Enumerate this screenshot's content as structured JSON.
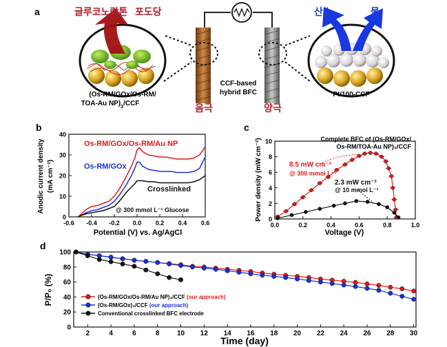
{
  "panel_a": {
    "letter": "a",
    "anode_products": [
      "글루코노락톤",
      "포도당"
    ],
    "cathode_products": [
      "산소",
      "물"
    ],
    "anode_caption_line1": "(Os-RM/GOx/Os-RM/",
    "anode_caption_line2": "TOA-Au NP)",
    "anode_caption_sub": "3",
    "anode_caption_tail": "/CCF",
    "center_label_line1": "CCF-based",
    "center_label_line2": "hybrid BFC",
    "cathode_caption": "Pt/100-CCF",
    "anode_label": "음극",
    "cathode_label": "양극",
    "colors": {
      "anode_text": "#b0202a",
      "cathode_text": "#1a3fd0",
      "anode_arrow": "#a01010",
      "cathode_arrow": "#1838e0"
    }
  },
  "panel_b": {
    "letter": "b",
    "ylabel_line1": "Anodic current density",
    "ylabel_line2": "(mA cm⁻²)",
    "xlabel": "Potential (V) vs. Ag/AgCl",
    "legend": [
      "Os-RM/GOx/Os-RM/Au NP",
      "Os-RM/GOx",
      "Crosslinked"
    ],
    "annotation": "@ 300 mmol L⁻¹ Glucose"
  },
  "panel_c": {
    "letter": "c",
    "ylabel": "Power density (mW cm⁻²)",
    "xlabel": "Voltage (V)",
    "title_line1": "Complete BFC of (Os-RM/GOx/",
    "title_line2": "Os-RM/TOA-Au NP)₃/CCF",
    "peak1_line1": "8.5 mW cm⁻²",
    "peak1_line2": "@ 300 mmol L⁻¹",
    "peak2_line1": "2.3 mW cm⁻²",
    "peak2_line2": "@ 10 mmol L⁻¹"
  },
  "panel_d": {
    "letter": "d",
    "ylabel": "P/P₀ (%)",
    "xlabel": "Time (day)",
    "legend": [
      {
        "text": "(Os-RM/GOx/Os-RM/Au NP)₃/CCF",
        "tag": "(our approach)"
      },
      {
        "text": "(Os-RM/GOx)₃/CCF",
        "tag": "(our approach)"
      },
      {
        "text": "Conventional crosslinked BFC electrode",
        "tag": ""
      }
    ]
  },
  "chart_data": [
    {
      "type": "line",
      "panel": "b",
      "xlabel": "Potential (V) vs. Ag/AgCl",
      "ylabel": "Anodic current density (mA cm⁻²)",
      "xlim": [
        -0.6,
        0.6
      ],
      "ylim": [
        0,
        40
      ],
      "xticks": [
        -0.6,
        -0.4,
        -0.2,
        0.0,
        0.2,
        0.4,
        0.6
      ],
      "yticks": [
        0,
        10,
        20,
        30,
        40
      ],
      "x": [
        -0.52,
        -0.5,
        -0.45,
        -0.4,
        -0.35,
        -0.3,
        -0.25,
        -0.2,
        -0.15,
        -0.1,
        -0.05,
        -0.02,
        0.0,
        0.02,
        0.05,
        0.1,
        0.15,
        0.2,
        0.25,
        0.3,
        0.35,
        0.4,
        0.45,
        0.5,
        0.55,
        0.6
      ],
      "series": [
        {
          "name": "Os-RM/GOx/Os-RM/Au NP",
          "color": "#e01818",
          "values": [
            0,
            1,
            3.5,
            5,
            5.5,
            6.5,
            7.5,
            10,
            14,
            19,
            24.5,
            28.5,
            32.5,
            33.5,
            31.5,
            30,
            29.5,
            29,
            29,
            28.5,
            28,
            28,
            28,
            28.5,
            30,
            34
          ]
        },
        {
          "name": "Os-RM/GOx",
          "color": "#1830d8",
          "values": [
            0,
            0.5,
            2,
            3,
            3.5,
            4.5,
            5.5,
            7.5,
            11,
            15,
            20,
            23.5,
            26.5,
            26.5,
            24.5,
            23,
            22.5,
            22,
            22,
            22,
            21.5,
            21.5,
            21.5,
            22,
            23.5,
            29
          ]
        },
        {
          "name": "Crosslinked",
          "color": "#111111",
          "values": [
            0,
            0.5,
            1.5,
            2,
            2.5,
            3,
            4,
            5,
            8,
            11.5,
            14.5,
            16,
            17.5,
            17.5,
            17.5,
            17,
            17,
            16.5,
            16.5,
            16.5,
            16.5,
            16.5,
            16.5,
            17,
            18,
            20
          ]
        }
      ]
    },
    {
      "type": "scatter",
      "panel": "c",
      "xlabel": "Voltage (V)",
      "ylabel": "Power density (mW cm⁻²)",
      "xlim": [
        0.0,
        1.0
      ],
      "ylim": [
        0,
        10
      ],
      "xticks": [
        0.0,
        0.2,
        0.4,
        0.6,
        0.8,
        1.0
      ],
      "yticks": [
        0,
        2,
        4,
        6,
        8,
        10
      ],
      "series": [
        {
          "name": "300 mmol L⁻¹",
          "color": "#e01818",
          "x": [
            0.02,
            0.08,
            0.14,
            0.2,
            0.26,
            0.32,
            0.38,
            0.44,
            0.5,
            0.55,
            0.6,
            0.64,
            0.68,
            0.72,
            0.76,
            0.79,
            0.81,
            0.83,
            0.84,
            0.85,
            0.86,
            0.865
          ],
          "y": [
            0.3,
            1.0,
            1.9,
            2.8,
            3.7,
            4.6,
            5.4,
            6.3,
            7.0,
            7.6,
            8.1,
            8.4,
            8.5,
            8.4,
            8.0,
            7.4,
            6.5,
            5.5,
            4.0,
            2.5,
            1.2,
            0.2
          ],
          "xerr": 0.02
        },
        {
          "name": "10 mmol L⁻¹",
          "color": "#111111",
          "x": [
            0.02,
            0.12,
            0.22,
            0.32,
            0.42,
            0.5,
            0.58,
            0.66,
            0.74,
            0.8,
            0.85,
            0.88
          ],
          "y": [
            0.1,
            0.5,
            0.9,
            1.3,
            1.7,
            2.0,
            2.3,
            2.2,
            1.9,
            1.5,
            0.8,
            0.2
          ]
        }
      ]
    },
    {
      "type": "line",
      "panel": "d",
      "xlabel": "Time (day)",
      "ylabel": "P/P₀ (%)",
      "xlim": [
        0.8,
        30.2
      ],
      "ylim": [
        0,
        100
      ],
      "xticks": [
        2,
        4,
        6,
        8,
        10,
        12,
        14,
        16,
        18,
        20,
        22,
        24,
        26,
        28,
        30
      ],
      "yticks": [
        0,
        20,
        40,
        60,
        80,
        100
      ],
      "series": [
        {
          "name": "(Os-RM/GOx/Os-RM/Au NP)₃/CCF",
          "color": "#e01818",
          "x": [
            1,
            2,
            3,
            4,
            5,
            6,
            7,
            8,
            9,
            10,
            11,
            12,
            13,
            14,
            15,
            16,
            17,
            18,
            19,
            20,
            21,
            22,
            23,
            24,
            25,
            26,
            27,
            28,
            29,
            30
          ],
          "y": [
            100,
            97,
            95,
            93,
            91,
            89,
            87.5,
            86,
            84.5,
            83,
            81,
            80,
            78.5,
            77,
            75.5,
            74,
            72,
            70.5,
            69,
            67.5,
            66,
            64,
            62.5,
            61,
            59.5,
            57.5,
            55.5,
            53,
            51,
            48
          ]
        },
        {
          "name": "(Os-RM/GOx)₃/CCF",
          "color": "#1830d8",
          "x": [
            1,
            2,
            3,
            4,
            5,
            6,
            7,
            8,
            9,
            10,
            11,
            12,
            13,
            14,
            15,
            16,
            17,
            18,
            19,
            20,
            21,
            22,
            23,
            24,
            25,
            26,
            27,
            28,
            29,
            30
          ],
          "y": [
            100,
            97,
            95,
            93,
            91,
            89,
            87.5,
            86,
            84,
            82,
            80,
            78.5,
            77,
            75,
            73,
            71,
            69,
            67.5,
            66,
            64,
            62,
            60,
            58,
            56,
            54,
            51.5,
            49,
            45,
            41,
            37
          ]
        },
        {
          "name": "Conventional crosslinked BFC electrode",
          "color": "#111111",
          "x": [
            1,
            2,
            3,
            4,
            5,
            6,
            7,
            8,
            9,
            10
          ],
          "y": [
            100,
            95,
            90,
            87,
            84,
            81,
            76,
            71,
            66,
            63
          ]
        }
      ]
    }
  ]
}
